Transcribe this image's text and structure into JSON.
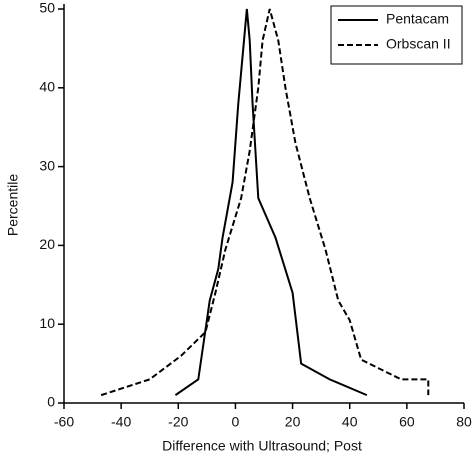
{
  "chart_data": {
    "type": "line",
    "xlabel": "Difference with Ultrasound; Post",
    "ylabel": "Percentile",
    "xlim": [
      -60,
      80
    ],
    "xticks": [
      -60,
      -40,
      -20,
      0,
      20,
      40,
      60,
      80
    ],
    "ylim": [
      0,
      50
    ],
    "yticks": [
      0,
      10,
      20,
      30,
      40,
      50
    ],
    "legend": "top-right",
    "series": [
      {
        "name": "Pentacam",
        "color": "#000000",
        "style": "solid",
        "x": [
          -21,
          -13,
          -9,
          -6,
          -4.5,
          -1,
          1,
          3,
          4,
          5,
          6,
          8,
          14,
          20,
          23,
          33,
          46
        ],
        "values": [
          1,
          3,
          13,
          17,
          21,
          28,
          38,
          46,
          50,
          46,
          38,
          26,
          21,
          14,
          5,
          3,
          1
        ]
      },
      {
        "name": "Orbscan II",
        "color": "#000000",
        "style": "dashed",
        "x": [
          -47,
          -30,
          -19,
          -10.5,
          -7,
          -3.5,
          2,
          5,
          8,
          9.5,
          12,
          15,
          17.5,
          21,
          26,
          31.5,
          36,
          40,
          44,
          58,
          67.5,
          67.5
        ],
        "values": [
          1,
          3,
          6,
          9,
          14,
          19.5,
          26,
          32,
          40,
          46,
          50,
          46,
          40,
          33,
          26,
          19.5,
          13,
          10.5,
          5.5,
          3,
          3,
          1
        ]
      }
    ]
  }
}
